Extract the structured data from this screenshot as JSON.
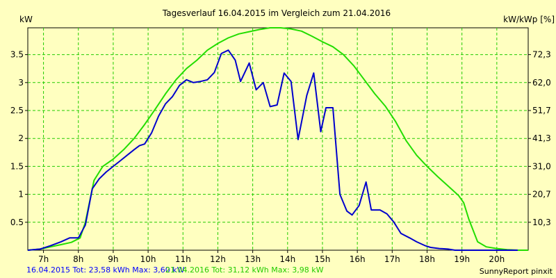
{
  "chart_data": {
    "type": "line",
    "title": "Tagesverlauf 16.04.2015 im Vergleich zum 21.04.2016",
    "ylabel_left": "kW",
    "ylabel_right": "kW/kWp [%]",
    "xlim": [
      6.55,
      20.9
    ],
    "ylim": [
      0,
      3.98
    ],
    "x_ticks": [
      7,
      8,
      9,
      10,
      11,
      12,
      13,
      14,
      15,
      16,
      17,
      18,
      19,
      20
    ],
    "x_tick_labels": [
      "7h",
      "8h",
      "9h",
      "10h",
      "11h",
      "12h",
      "13h",
      "14h",
      "15h",
      "16h",
      "17h",
      "18h",
      "19h",
      "20h"
    ],
    "y_ticks_left": [
      0.5,
      1,
      1.5,
      2,
      2.5,
      3,
      3.5
    ],
    "y_tick_labels_left": [
      "0.5",
      "1",
      "1.5",
      "2",
      "2.5",
      "3",
      "3.5"
    ],
    "y_tick_labels_right": [
      "10,3",
      "20,7",
      "31,0",
      "41,3",
      "51,7",
      "62,0",
      "72,3"
    ],
    "grid": true,
    "colors": {
      "background": "#ffffc0",
      "grid": "#22cc00",
      "series_2015": "#0000cc",
      "series_2016": "#22dd00"
    },
    "series": [
      {
        "name": "16.04.2015",
        "x": [
          6.55,
          6.9,
          7.2,
          7.5,
          7.75,
          8.0,
          8.2,
          8.4,
          8.6,
          8.8,
          9.0,
          9.2,
          9.4,
          9.6,
          9.75,
          9.9,
          10.1,
          10.3,
          10.5,
          10.7,
          10.9,
          11.1,
          11.3,
          11.5,
          11.7,
          11.9,
          12.1,
          12.3,
          12.5,
          12.65,
          12.9,
          13.1,
          13.3,
          13.5,
          13.7,
          13.9,
          14.1,
          14.3,
          14.55,
          14.75,
          14.95,
          15.1,
          15.3,
          15.5,
          15.7,
          15.85,
          16.05,
          16.25,
          16.4,
          16.65,
          16.85,
          17.05,
          17.25,
          17.5,
          17.7,
          17.95,
          18.1,
          18.35,
          18.6,
          18.8,
          19.0,
          19.3,
          19.6,
          19.9,
          20.2,
          20.6
        ],
        "y": [
          0.0,
          0.02,
          0.08,
          0.15,
          0.22,
          0.22,
          0.45,
          1.1,
          1.28,
          1.4,
          1.5,
          1.6,
          1.7,
          1.8,
          1.87,
          1.9,
          2.1,
          2.4,
          2.62,
          2.75,
          2.95,
          3.05,
          3.0,
          3.02,
          3.05,
          3.18,
          3.52,
          3.58,
          3.4,
          3.02,
          3.35,
          2.87,
          3.0,
          2.57,
          2.6,
          3.17,
          3.02,
          1.98,
          2.77,
          3.17,
          2.12,
          2.55,
          2.55,
          1.0,
          0.7,
          0.63,
          0.8,
          1.22,
          0.72,
          0.72,
          0.65,
          0.5,
          0.3,
          0.22,
          0.15,
          0.08,
          0.05,
          0.03,
          0.02,
          0.0,
          0.0,
          0.0,
          0.0,
          0.0,
          0.0,
          0.0
        ]
      },
      {
        "name": "21.04.2016",
        "x": [
          6.55,
          6.9,
          7.2,
          7.5,
          7.8,
          8.05,
          8.2,
          8.45,
          8.7,
          9.0,
          9.3,
          9.6,
          9.9,
          10.2,
          10.5,
          10.8,
          11.1,
          11.4,
          11.7,
          12.0,
          12.3,
          12.6,
          12.9,
          13.2,
          13.5,
          13.8,
          14.1,
          14.4,
          14.7,
          15.0,
          15.3,
          15.6,
          15.9,
          16.2,
          16.5,
          16.8,
          17.1,
          17.4,
          17.7,
          18.0,
          18.3,
          18.6,
          18.9,
          19.05,
          19.2,
          19.45,
          19.7,
          20.0,
          20.3,
          20.6,
          20.9
        ],
        "y": [
          0.0,
          0.02,
          0.06,
          0.1,
          0.14,
          0.22,
          0.5,
          1.25,
          1.5,
          1.63,
          1.8,
          2.0,
          2.25,
          2.52,
          2.8,
          3.05,
          3.25,
          3.4,
          3.58,
          3.7,
          3.8,
          3.87,
          3.91,
          3.95,
          3.98,
          3.98,
          3.96,
          3.92,
          3.83,
          3.73,
          3.64,
          3.5,
          3.3,
          3.05,
          2.8,
          2.58,
          2.3,
          1.96,
          1.7,
          1.5,
          1.32,
          1.15,
          0.98,
          0.85,
          0.55,
          0.15,
          0.06,
          0.03,
          0.01,
          0.0,
          0.0
        ]
      }
    ],
    "footer": {
      "left_blue": "16.04.2015 Tot: 23,58 kWh Max: 3,60 kW",
      "left_green": "21.04.2016 Tot: 31,12 kWh Max: 3,98 kW",
      "right": "SunnyReport pinxit"
    }
  }
}
